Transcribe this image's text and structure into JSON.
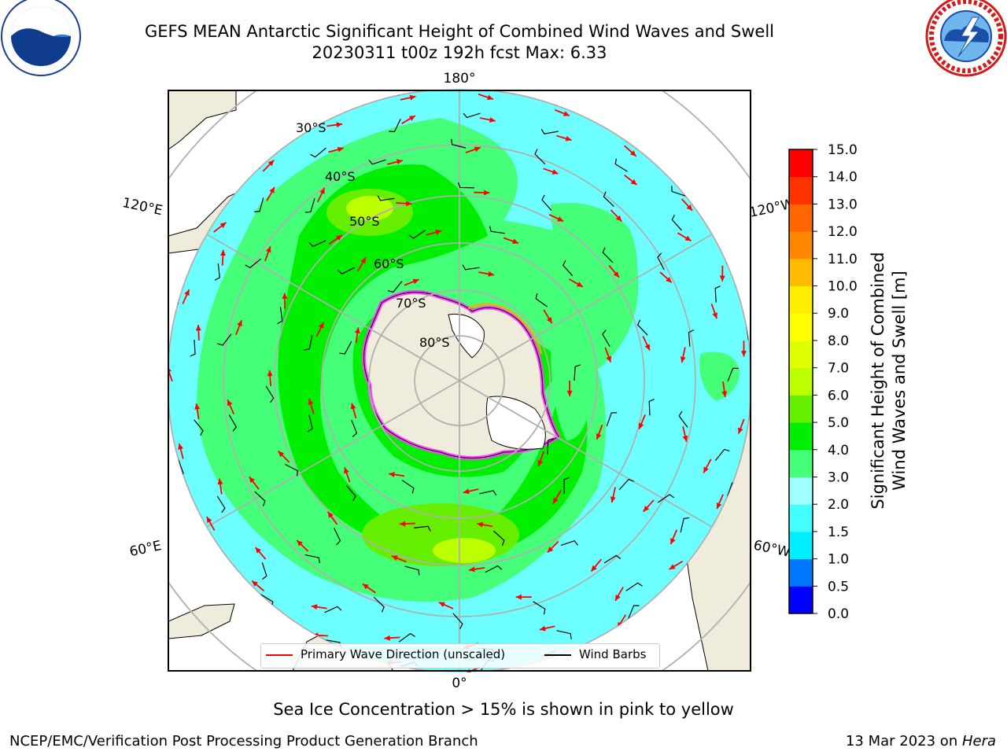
{
  "header": {
    "title_line1": "GEFS MEAN Antarctic Significant Height of Combined Wind Waves and Swell",
    "title_line2": "20230311 t00z 192h fcst   Max: 6.33"
  },
  "logos": {
    "left": {
      "text": "NOAA",
      "ring_text": "NATIONAL OCEANIC AND ATMOSPHERIC ADMINISTRATION · U.S. DEPARTMENT OF COMMERCE"
    },
    "right": {
      "ring_text": "NATIONAL WEATHER SERVICE"
    }
  },
  "map": {
    "lon_labels": {
      "top": "180°",
      "bottom": "0°",
      "upper_left": "120°E",
      "upper_right": "120°W",
      "lower_left": "60°E",
      "lower_right": "60°W"
    },
    "lat_labels": [
      "30°S",
      "40°S",
      "50°S",
      "60°S",
      "70°S",
      "80°S"
    ],
    "colors": {
      "land": "#efecdc",
      "ice": "#ffffff",
      "ice_edge": "#ff44ff",
      "graticule": "#b0b0b0",
      "arrow": "#ff0000",
      "barb": "#000000"
    }
  },
  "legend": {
    "primary_wave_direction": "Primary Wave Direction (unscaled)",
    "wind_barbs": "Wind Barbs"
  },
  "colorbar": {
    "title_line1": "Significant Height of Combined",
    "title_line2": "Wind Waves and Swell [m]",
    "levels": [
      {
        "label": "0.0",
        "color": "#0000ff"
      },
      {
        "label": "0.5",
        "color": "#0077ff"
      },
      {
        "label": "1.0",
        "color": "#00eeff"
      },
      {
        "label": "1.5",
        "color": "#44ffff"
      },
      {
        "label": "2.0",
        "color": "#a0ffff"
      },
      {
        "label": "3.0",
        "color": "#44ff77"
      },
      {
        "label": "4.0",
        "color": "#00ee00"
      },
      {
        "label": "5.0",
        "color": "#66ee00"
      },
      {
        "label": "6.0",
        "color": "#bbff00"
      },
      {
        "label": "7.0",
        "color": "#ddff00"
      },
      {
        "label": "8.0",
        "color": "#ffff00"
      },
      {
        "label": "9.0",
        "color": "#ffee00"
      },
      {
        "label": "10.0",
        "color": "#ffbb00"
      },
      {
        "label": "11.0",
        "color": "#ff8800"
      },
      {
        "label": "12.0",
        "color": "#ff6600"
      },
      {
        "label": "13.0",
        "color": "#ff3300"
      },
      {
        "label": "14.0",
        "color": "#ff0000"
      },
      {
        "label": "15.0",
        "color": null
      }
    ]
  },
  "notes": {
    "sea_ice": "Sea Ice Concentration > 15% is shown in pink to yellow"
  },
  "footer": {
    "left": "NCEP/EMC/Verification Post Processing Product Generation Branch",
    "right_date": "13 Mar 2023 on ",
    "right_host": "Hera"
  }
}
